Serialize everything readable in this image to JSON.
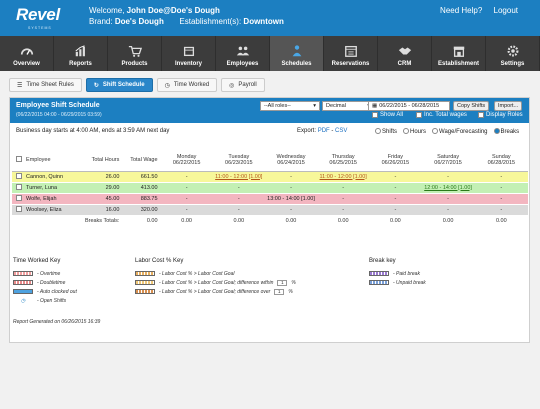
{
  "header": {
    "logo": "Revel",
    "logo_sub": "SYSTEMS",
    "welcome_prefix": "Welcome,",
    "user": "John Doe@Doe's Dough",
    "brand_label": "Brand:",
    "brand": "Doe's Dough",
    "establishment_label": "Establishment(s):",
    "establishment": "Downtown",
    "help": "Need Help?",
    "logout": "Logout"
  },
  "nav": [
    {
      "label": "Overview",
      "icon": "gauge-icon"
    },
    {
      "label": "Reports",
      "icon": "bar-chart-icon"
    },
    {
      "label": "Products",
      "icon": "cart-icon"
    },
    {
      "label": "Inventory",
      "icon": "box-icon"
    },
    {
      "label": "Employees",
      "icon": "people-icon"
    },
    {
      "label": "Schedules",
      "icon": "person-clock-icon"
    },
    {
      "label": "Reservations",
      "icon": "calendar-icon"
    },
    {
      "label": "CRM",
      "icon": "handshake-icon"
    },
    {
      "label": "Establishment",
      "icon": "storefront-icon"
    },
    {
      "label": "Settings",
      "icon": "gear-icon"
    }
  ],
  "subtabs": [
    {
      "label": "Time Sheet Rules"
    },
    {
      "label": "Shift Schedule"
    },
    {
      "label": "Time Worked"
    },
    {
      "label": "Payroll"
    }
  ],
  "panel": {
    "title": "Employee Shift Schedule",
    "range": "(06/22/2015 04:00 - 06/29/2015 03:59)",
    "roles_select": "--All roles--",
    "format_select": "Decimal",
    "date_range": "06/22/2015 - 06/28/2015",
    "copy_shifts": "Copy Shifts",
    "import": "Import...",
    "show_all": "Show All",
    "inc_total_wages": "Inc. Total wages",
    "display_roles": "Display Roles"
  },
  "business_day": "Business day starts at 4:00 AM, ends at 3:59 AM next day",
  "export": {
    "label": "Export:",
    "pdf": "PDF",
    "sep": "-",
    "csv": "CSV"
  },
  "view_options": [
    "Shifts",
    "Hours",
    "Wage/Forecasting",
    "Breaks"
  ],
  "table": {
    "headers": {
      "employee": "Employee",
      "total_hours": "Total Hours",
      "total_wage": "Total Wage"
    },
    "days": [
      {
        "name": "Monday",
        "date": "06/22/2015"
      },
      {
        "name": "Tuesday",
        "date": "06/23/2015"
      },
      {
        "name": "Wednesday",
        "date": "06/24/2015"
      },
      {
        "name": "Thursday",
        "date": "06/25/2015"
      },
      {
        "name": "Friday",
        "date": "06/26/2015"
      },
      {
        "name": "Saturday",
        "date": "06/27/2015"
      },
      {
        "name": "Sunday",
        "date": "06/28/2015"
      }
    ],
    "rows": [
      {
        "name": "Cannon, Quinn",
        "hours": "26.00",
        "wage": "661.50",
        "days": [
          "-",
          "11:00 - 12:00 [1.00]",
          "-",
          "11:00 - 12:00 [1.00]",
          "-",
          "-",
          "-"
        ]
      },
      {
        "name": "Turner, Luna",
        "hours": "29.00",
        "wage": "413.00",
        "days": [
          "-",
          "-",
          "-",
          "-",
          "-",
          "12:00 - 14:00 [1.00]",
          "-"
        ]
      },
      {
        "name": "Wolfe, Elijah",
        "hours": "45.00",
        "wage": "883.75",
        "days": [
          "-",
          "-",
          "13:00 - 14:00 [1.00]",
          "-",
          "-",
          "-",
          "-"
        ]
      },
      {
        "name": "Woolsey, Eliza",
        "hours": "16.00",
        "wage": "320.00",
        "days": [
          "-",
          "-",
          "-",
          "-",
          "-",
          "-",
          "-"
        ]
      }
    ],
    "totals_label": "Breaks Totals:",
    "totals": [
      "0.00",
      "0.00",
      "0.00",
      "0.00",
      "0.00",
      "0.00",
      "0.00",
      "0.00"
    ]
  },
  "keys": {
    "time_worked": {
      "title": "Time Worked Key",
      "items": [
        "- Overtime",
        "- Doubletime",
        "- Auto clocked out",
        "- Open Shifts"
      ]
    },
    "labor_cost": {
      "title": "Labor Cost % Key",
      "items": [
        "- Labor Cost % > Labor Cost Goal",
        "- Labor Cost % > Labor Cost Goal; difference within",
        "- Labor Cost % > Labor Cost Goal; difference over"
      ],
      "within_value": "1",
      "over_value": "1",
      "unit": "%"
    },
    "break": {
      "title": "Break key",
      "items": [
        "- Paid break",
        "- Unpaid break"
      ]
    }
  },
  "report_generated": "Report Generated on 06/26/2015 16:39",
  "colors": {
    "brand_blue": "#1c7fc1",
    "nav_dark": "#3c3c3c",
    "row_yellow": "#f7f79a",
    "row_green": "#c3f0b4",
    "row_pink": "#f3b6c0",
    "row_gray": "#dadada"
  }
}
